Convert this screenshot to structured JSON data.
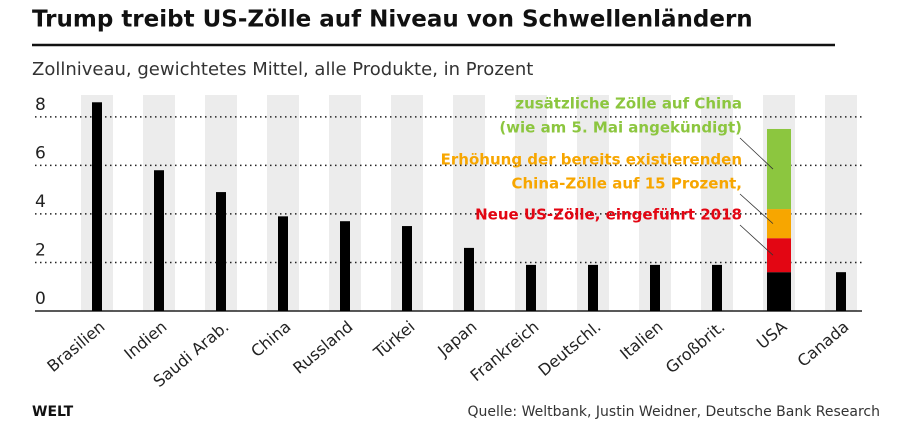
{
  "chart_data": {
    "type": "bar",
    "stacked": true,
    "title": "Trump treibt US-Zölle auf Niveau von Schwellenländern",
    "subtitle": "Zollniveau, gewichtetes Mittel, alle Produkte, in Prozent",
    "source": "Quelle: Weltbank, Justin Weidner, Deutsche Bank Research",
    "brand": "WELT",
    "categories": [
      "Brasilien",
      "Indien",
      "Saudi Arab.",
      "China",
      "Russland",
      "Türkei",
      "Japan",
      "Frankreich",
      "Deutschl.",
      "Italien",
      "Großbrit.",
      "USA",
      "Canada"
    ],
    "series": [
      {
        "color": "#000000",
        "values": [
          8.6,
          5.8,
          4.9,
          3.9,
          3.7,
          3.5,
          2.6,
          1.9,
          1.9,
          1.9,
          1.9,
          1.6,
          1.6
        ]
      },
      {
        "name": [
          "Neue US-Zölle, eingeführt 2018"
        ],
        "color": "#e30613",
        "values": [
          null,
          null,
          null,
          null,
          null,
          null,
          null,
          null,
          null,
          null,
          null,
          1.4,
          null
        ]
      },
      {
        "name": [
          "Erhöhung der bereits existierenden",
          "China-Zölle auf 15 Prozent,"
        ],
        "color": "#f7a600",
        "values": [
          null,
          null,
          null,
          null,
          null,
          null,
          null,
          null,
          null,
          null,
          null,
          1.2,
          null
        ]
      },
      {
        "name": [
          "zusätzliche Zölle auf China",
          "(wie am 5. Mai angekündigt)"
        ],
        "color": "#8cc63f",
        "values": [
          null,
          null,
          null,
          null,
          null,
          null,
          null,
          null,
          null,
          null,
          null,
          3.3,
          null
        ]
      }
    ],
    "ylim": [
      0,
      8.9
    ],
    "yticks": [
      0,
      2,
      4,
      6,
      8
    ],
    "grid": true
  }
}
